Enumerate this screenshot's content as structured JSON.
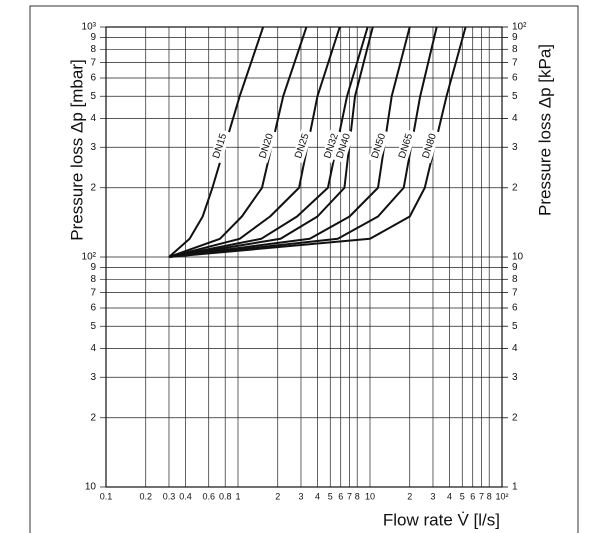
{
  "chart_data": {
    "type": "line",
    "xlabel": "Flow rate V̇ [l/s]",
    "ylabel": "Pressure loss Δp [mbar]",
    "y2label": "Pressure loss Δp [kPa]",
    "xscale": "log",
    "yscale": "log",
    "grid": true,
    "xlim": [
      0.1,
      100
    ],
    "ylim": [
      10,
      1000
    ],
    "y2lim": [
      1,
      100
    ],
    "xticks": [
      0.1,
      0.2,
      0.3,
      0.4,
      0.6,
      0.8,
      1,
      2,
      3,
      4,
      5,
      6,
      7,
      8,
      10,
      {
        "value": 20,
        "label": "2"
      },
      {
        "value": 30,
        "label": "3"
      },
      {
        "value": 40,
        "label": "4"
      },
      {
        "value": 50,
        "label": "5"
      },
      {
        "value": 60,
        "label": "6"
      },
      {
        "value": 70,
        "label": "7"
      },
      {
        "value": 80,
        "label": "8"
      },
      {
        "value": 100,
        "label": "10²"
      }
    ],
    "yticks": [
      10,
      {
        "value": 20,
        "label": "2"
      },
      {
        "value": 30,
        "label": "3"
      },
      {
        "value": 40,
        "label": "4"
      },
      {
        "value": 50,
        "label": "5"
      },
      {
        "value": 60,
        "label": "6"
      },
      {
        "value": 70,
        "label": "7"
      },
      {
        "value": 80,
        "label": "8"
      },
      {
        "value": 90,
        "label": "9"
      },
      {
        "value": 100,
        "label": "10²"
      },
      {
        "value": 200,
        "label": "2"
      },
      {
        "value": 300,
        "label": "3"
      },
      {
        "value": 400,
        "label": "4"
      },
      {
        "value": 500,
        "label": "5"
      },
      {
        "value": 600,
        "label": "6"
      },
      {
        "value": 700,
        "label": "7"
      },
      {
        "value": 800,
        "label": "8"
      },
      {
        "value": 900,
        "label": "9"
      },
      {
        "value": 1000,
        "label": "10³"
      }
    ],
    "y2ticks": [
      1,
      2,
      3,
      4,
      5,
      6,
      7,
      8,
      9,
      10,
      {
        "value": 20,
        "label": "2"
      },
      {
        "value": 30,
        "label": "3"
      },
      {
        "value": 40,
        "label": "4"
      },
      {
        "value": 50,
        "label": "5"
      },
      {
        "value": 60,
        "label": "6"
      },
      {
        "value": 70,
        "label": "7"
      },
      {
        "value": 80,
        "label": "8"
      },
      {
        "value": 90,
        "label": "9"
      },
      {
        "value": 100,
        "label": "10²"
      }
    ],
    "series": [
      {
        "name": "DN15",
        "color": "#111111",
        "x": [
          0.3,
          0.43,
          0.54,
          0.64,
          1.03,
          1.55
        ],
        "values": [
          100,
          120,
          150,
          200,
          500,
          1000
        ]
      },
      {
        "name": "DN20",
        "color": "#111111",
        "x": [
          0.3,
          0.73,
          1.07,
          1.52,
          2.2,
          3.3
        ],
        "values": [
          100,
          120,
          150,
          200,
          500,
          1000
        ]
      },
      {
        "name": "DN25",
        "color": "#111111",
        "x": [
          0.3,
          1.03,
          1.75,
          2.9,
          4.0,
          5.9
        ],
        "values": [
          100,
          120,
          150,
          200,
          500,
          1000
        ]
      },
      {
        "name": "DN32",
        "color": "#111111",
        "x": [
          0.3,
          1.5,
          2.8,
          4.8,
          6.7,
          9.6
        ],
        "values": [
          100,
          120,
          150,
          200,
          500,
          1000
        ]
      },
      {
        "name": "DN40",
        "color": "#111111",
        "x": [
          0.3,
          2.1,
          4.0,
          6.4,
          7.7,
          10.5
        ],
        "values": [
          100,
          120,
          150,
          200,
          500,
          1000
        ]
      },
      {
        "name": "DN50",
        "color": "#111111",
        "x": [
          0.3,
          3.5,
          7.0,
          11.5,
          14.6,
          20
        ],
        "values": [
          100,
          120,
          150,
          200,
          500,
          1000
        ]
      },
      {
        "name": "DN65",
        "color": "#111111",
        "x": [
          0.3,
          5.7,
          11.5,
          18,
          24,
          32
        ],
        "values": [
          100,
          120,
          150,
          200,
          500,
          1000
        ]
      },
      {
        "name": "DN80",
        "color": "#111111",
        "x": [
          0.3,
          10,
          20,
          26,
          38,
          53
        ],
        "values": [
          100,
          120,
          150,
          200,
          500,
          1000
        ]
      }
    ]
  }
}
